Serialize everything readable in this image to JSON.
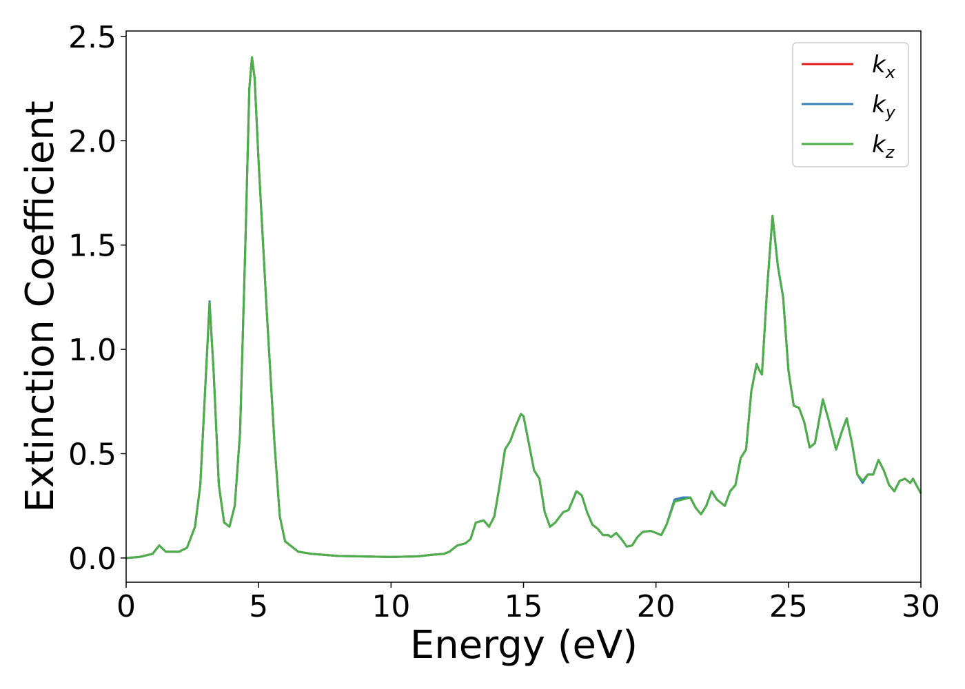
{
  "chart_data": {
    "type": "line",
    "x_label": "Energy (eV)",
    "y_label": "Extinction Coefficient",
    "x": [
      0,
      0.5,
      1.0,
      1.25,
      1.5,
      2.0,
      2.3,
      2.6,
      2.8,
      3.0,
      3.15,
      3.3,
      3.5,
      3.7,
      3.9,
      4.1,
      4.3,
      4.5,
      4.65,
      4.75,
      4.85,
      5.0,
      5.3,
      5.6,
      5.8,
      6.0,
      6.5,
      7,
      8,
      10,
      11,
      11.5,
      12,
      12.2,
      12.5,
      12.8,
      13.0,
      13.2,
      13.5,
      13.7,
      13.9,
      14.1,
      14.3,
      14.5,
      14.7,
      14.9,
      15.0,
      15.2,
      15.4,
      15.6,
      15.8,
      16.0,
      16.2,
      16.5,
      16.7,
      17.0,
      17.2,
      17.4,
      17.6,
      17.8,
      18.0,
      18.2,
      18.3,
      18.5,
      18.7,
      18.9,
      19.1,
      19.3,
      19.5,
      19.8,
      20.0,
      20.2,
      20.4,
      20.7,
      21.0,
      21.3,
      21.5,
      21.7,
      21.9,
      22.1,
      22.3,
      22.6,
      22.8,
      23.0,
      23.2,
      23.4,
      23.6,
      23.8,
      23.9,
      24.0,
      24.2,
      24.4,
      24.6,
      24.8,
      25.0,
      25.2,
      25.4,
      25.6,
      25.8,
      26.0,
      26.3,
      26.5,
      26.8,
      27.0,
      27.2,
      27.4,
      27.6,
      27.8,
      28.0,
      28.2,
      28.4,
      28.6,
      28.8,
      29.0,
      29.2,
      29.4,
      29.6,
      29.7,
      30.0
    ],
    "series": [
      {
        "name": "kx",
        "color": "#e41a1c",
        "values": [
          0,
          0.005,
          0.02,
          0.06,
          0.03,
          0.03,
          0.05,
          0.15,
          0.35,
          0.85,
          1.22,
          0.9,
          0.35,
          0.17,
          0.15,
          0.25,
          0.6,
          1.5,
          2.25,
          2.4,
          2.3,
          1.9,
          1.2,
          0.55,
          0.2,
          0.08,
          0.03,
          0.02,
          0.01,
          0.005,
          0.008,
          0.015,
          0.02,
          0.03,
          0.06,
          0.07,
          0.09,
          0.17,
          0.18,
          0.15,
          0.2,
          0.35,
          0.52,
          0.56,
          0.63,
          0.69,
          0.68,
          0.55,
          0.42,
          0.38,
          0.22,
          0.15,
          0.17,
          0.22,
          0.23,
          0.32,
          0.3,
          0.22,
          0.16,
          0.14,
          0.11,
          0.11,
          0.1,
          0.12,
          0.09,
          0.055,
          0.06,
          0.1,
          0.125,
          0.13,
          0.12,
          0.11,
          0.16,
          0.27,
          0.285,
          0.29,
          0.24,
          0.21,
          0.25,
          0.32,
          0.28,
          0.25,
          0.32,
          0.35,
          0.48,
          0.52,
          0.8,
          0.93,
          0.9,
          0.88,
          1.3,
          1.64,
          1.4,
          1.25,
          0.9,
          0.73,
          0.72,
          0.65,
          0.53,
          0.55,
          0.76,
          0.67,
          0.52,
          0.6,
          0.67,
          0.55,
          0.4,
          0.37,
          0.4,
          0.4,
          0.47,
          0.42,
          0.35,
          0.32,
          0.37,
          0.38,
          0.36,
          0.38,
          0.31
        ]
      },
      {
        "name": "ky",
        "color": "#377eb8",
        "values": [
          0,
          0.005,
          0.02,
          0.06,
          0.03,
          0.03,
          0.05,
          0.15,
          0.35,
          0.85,
          1.23,
          0.9,
          0.35,
          0.17,
          0.15,
          0.25,
          0.6,
          1.5,
          2.25,
          2.4,
          2.3,
          1.9,
          1.2,
          0.55,
          0.2,
          0.08,
          0.03,
          0.02,
          0.01,
          0.005,
          0.008,
          0.015,
          0.02,
          0.03,
          0.06,
          0.07,
          0.09,
          0.17,
          0.18,
          0.15,
          0.2,
          0.35,
          0.52,
          0.56,
          0.63,
          0.69,
          0.68,
          0.55,
          0.42,
          0.38,
          0.22,
          0.15,
          0.17,
          0.22,
          0.23,
          0.32,
          0.3,
          0.22,
          0.16,
          0.14,
          0.11,
          0.11,
          0.1,
          0.12,
          0.09,
          0.055,
          0.06,
          0.1,
          0.125,
          0.13,
          0.12,
          0.11,
          0.16,
          0.28,
          0.29,
          0.29,
          0.24,
          0.21,
          0.25,
          0.32,
          0.28,
          0.25,
          0.32,
          0.35,
          0.48,
          0.52,
          0.8,
          0.93,
          0.9,
          0.88,
          1.3,
          1.64,
          1.4,
          1.25,
          0.9,
          0.73,
          0.72,
          0.65,
          0.53,
          0.55,
          0.76,
          0.67,
          0.52,
          0.6,
          0.67,
          0.55,
          0.4,
          0.36,
          0.4,
          0.4,
          0.47,
          0.42,
          0.35,
          0.32,
          0.37,
          0.38,
          0.36,
          0.38,
          0.31
        ]
      },
      {
        "name": "kz",
        "color": "#4daf4a",
        "values": [
          0,
          0.005,
          0.02,
          0.06,
          0.03,
          0.03,
          0.05,
          0.15,
          0.35,
          0.85,
          1.22,
          0.9,
          0.35,
          0.17,
          0.15,
          0.25,
          0.6,
          1.5,
          2.25,
          2.4,
          2.3,
          1.9,
          1.2,
          0.55,
          0.2,
          0.08,
          0.03,
          0.02,
          0.01,
          0.005,
          0.008,
          0.015,
          0.02,
          0.03,
          0.06,
          0.07,
          0.09,
          0.17,
          0.18,
          0.15,
          0.2,
          0.35,
          0.52,
          0.56,
          0.63,
          0.69,
          0.68,
          0.55,
          0.42,
          0.38,
          0.22,
          0.15,
          0.17,
          0.22,
          0.23,
          0.32,
          0.3,
          0.22,
          0.16,
          0.14,
          0.11,
          0.11,
          0.1,
          0.12,
          0.09,
          0.055,
          0.06,
          0.1,
          0.125,
          0.13,
          0.12,
          0.11,
          0.16,
          0.27,
          0.28,
          0.29,
          0.24,
          0.21,
          0.25,
          0.32,
          0.28,
          0.25,
          0.32,
          0.35,
          0.48,
          0.52,
          0.8,
          0.93,
          0.9,
          0.88,
          1.3,
          1.64,
          1.4,
          1.25,
          0.9,
          0.73,
          0.72,
          0.65,
          0.53,
          0.55,
          0.76,
          0.67,
          0.52,
          0.6,
          0.67,
          0.55,
          0.4,
          0.37,
          0.4,
          0.4,
          0.47,
          0.42,
          0.35,
          0.32,
          0.37,
          0.38,
          0.36,
          0.38,
          0.31
        ]
      }
    ],
    "xlim": [
      0,
      30
    ],
    "xticks": [
      0,
      5,
      10,
      15,
      20,
      25,
      30
    ],
    "ylim": [
      -0.116,
      2.526
    ],
    "yticks": [
      {
        "value": 0,
        "label": "0.0"
      },
      0.5,
      {
        "value": 1,
        "label": "1.0"
      },
      1.5,
      {
        "value": 2,
        "label": "2.0"
      },
      2.5
    ],
    "grid": false,
    "legend": "upper right"
  }
}
